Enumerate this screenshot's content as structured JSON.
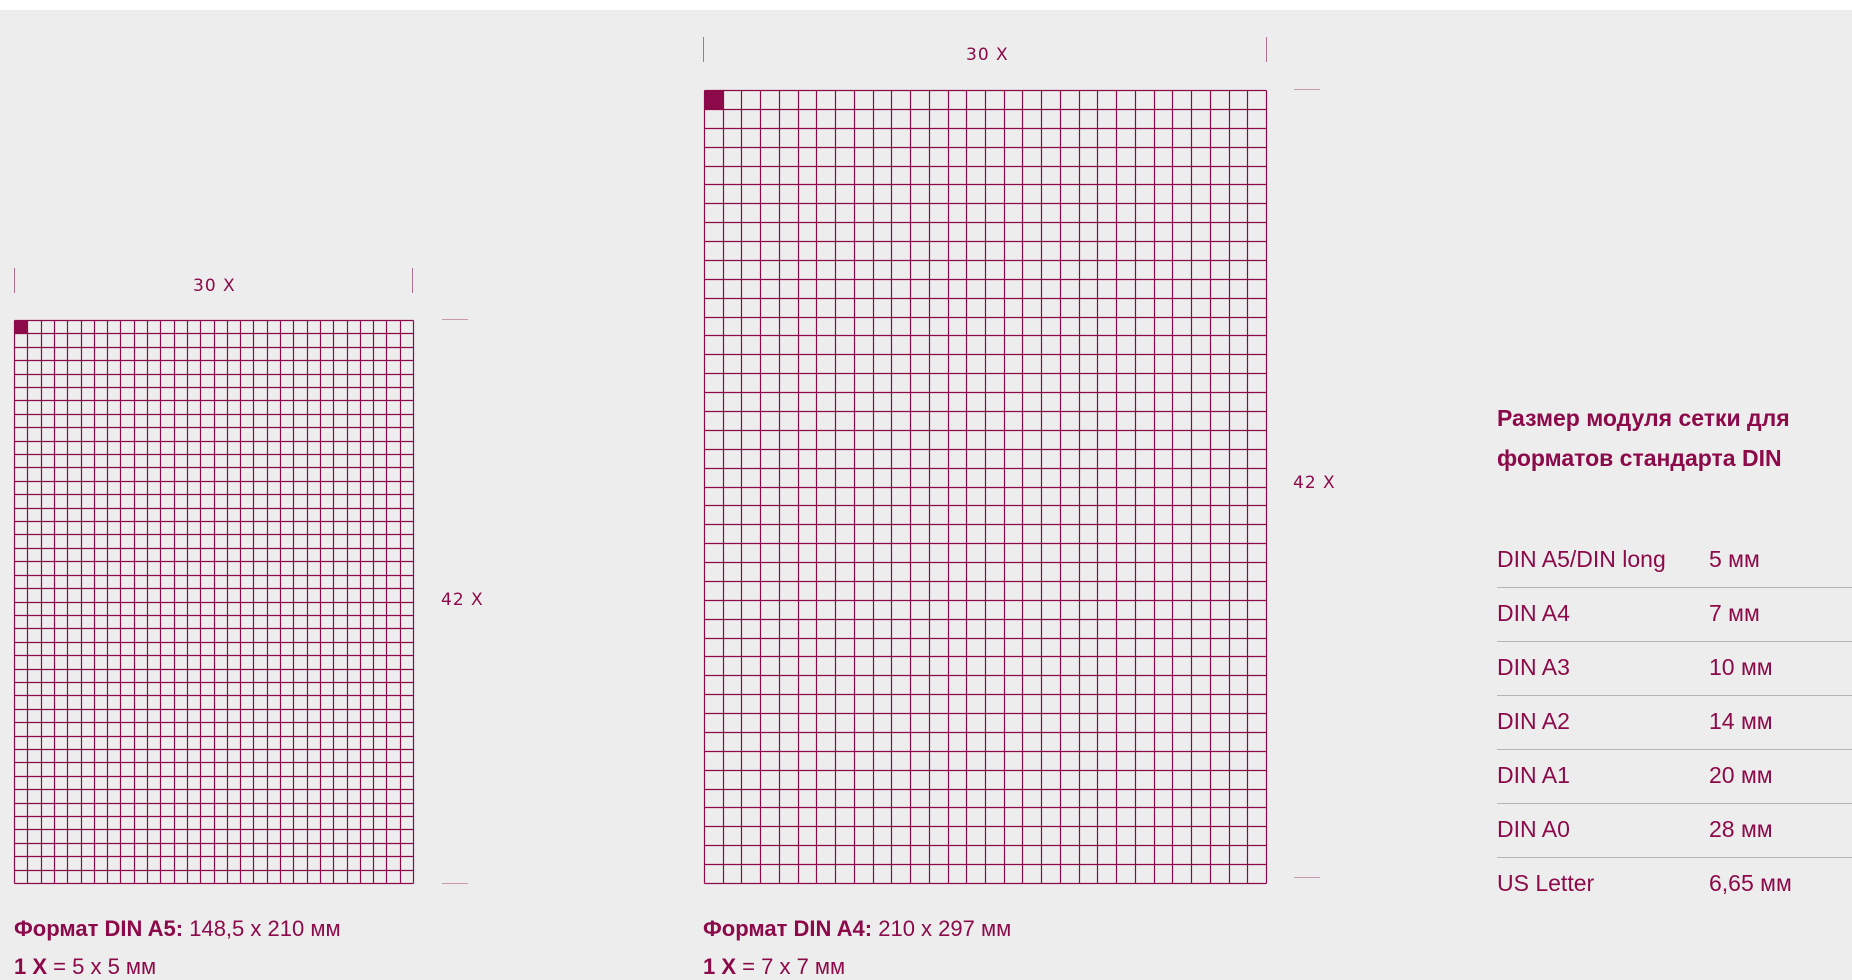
{
  "colors": {
    "accent": "#8c0a4a",
    "background": "#ededed"
  },
  "left_grid": {
    "columns": 30,
    "rows": 42,
    "width_label": "30 X",
    "height_label": "42 X",
    "caption_title": "Формат DIN A5:",
    "caption_size": " 148,5 x 210 мм",
    "module_label": "1 X",
    "module_value": " = 5 x 5 мм"
  },
  "right_grid": {
    "columns": 30,
    "rows": 42,
    "width_label": "30 X",
    "height_label": "42 X",
    "caption_title": "Формат DIN A4:",
    "caption_size": " 210 x 297 мм",
    "module_label": "1 X",
    "module_value": " = 7 x 7 мм"
  },
  "sidebar": {
    "title_line1": "Размер модуля сетки для",
    "title_line2": "форматов стандарта DIN",
    "rows": [
      {
        "format": "DIN A5/DIN long",
        "size": "5 мм"
      },
      {
        "format": "DIN A4",
        "size": "7 мм"
      },
      {
        "format": "DIN A3",
        "size": "10 мм"
      },
      {
        "format": "DIN A2",
        "size": "14 мм"
      },
      {
        "format": "DIN A1",
        "size": "20 мм"
      },
      {
        "format": "DIN A0",
        "size": "28 мм"
      },
      {
        "format": "US Letter",
        "size": "6,65 мм"
      }
    ]
  }
}
